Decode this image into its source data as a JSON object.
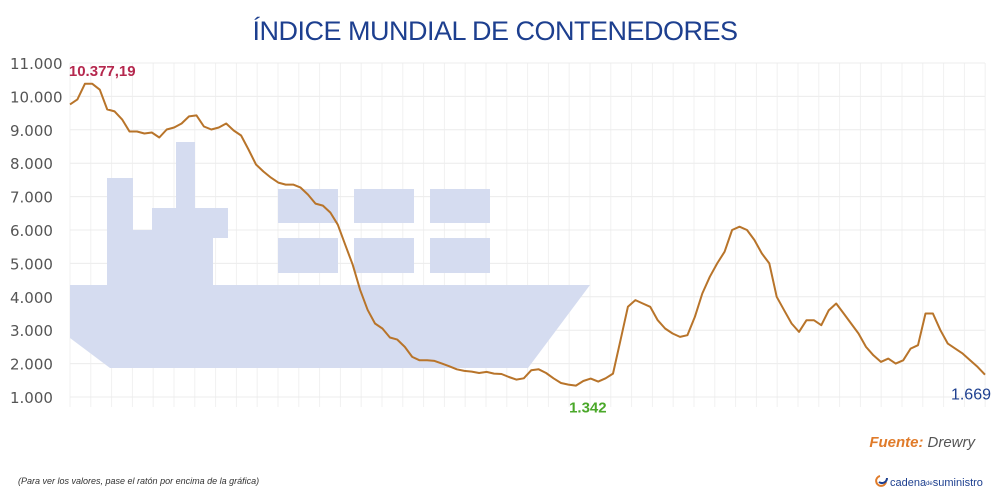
{
  "chart_data": {
    "type": "line",
    "title": "ÍNDICE MUNDIAL DE CONTENEDORES",
    "xlabel": "",
    "ylabel": "",
    "ylim": [
      1000,
      11000
    ],
    "yticks": [
      "1.000",
      "2.000",
      "3.000",
      "4.000",
      "5.000",
      "6.000",
      "7.000",
      "8.000",
      "9.000",
      "10.000",
      "11.000"
    ],
    "grid": true,
    "series": [
      {
        "values": [
          9760,
          9910,
          10377,
          10377,
          10200,
          9610,
          9550,
          9310,
          8950,
          8950,
          8890,
          8920,
          8770,
          9010,
          9070,
          9190,
          9400,
          9430,
          9100,
          9010,
          9070,
          9190,
          8980,
          8830,
          8410,
          7960,
          7750,
          7570,
          7420,
          7360,
          7360,
          7270,
          7060,
          6790,
          6730,
          6520,
          6160,
          5560,
          4960,
          4210,
          3610,
          3200,
          3050,
          2780,
          2720,
          2500,
          2200,
          2100,
          2100,
          2080,
          2000,
          1920,
          1830,
          1780,
          1760,
          1720,
          1750,
          1700,
          1690,
          1600,
          1520,
          1560,
          1800,
          1830,
          1720,
          1560,
          1420,
          1370,
          1342,
          1480,
          1550,
          1460,
          1560,
          1700,
          2700,
          3700,
          3900,
          3800,
          3700,
          3300,
          3050,
          2900,
          2800,
          2850,
          3400,
          4100,
          4600,
          5000,
          5350,
          6000,
          6100,
          6000,
          5700,
          5300,
          5000,
          4000,
          3600,
          3200,
          2950,
          3300,
          3300,
          3150,
          3600,
          3800,
          3500,
          3200,
          2900,
          2500,
          2250,
          2050,
          2150,
          2000,
          2100,
          2450,
          2550,
          3500,
          3500,
          3000,
          2600,
          2450,
          2300,
          2100,
          1900,
          1669
        ]
      }
    ],
    "annotations": {
      "max": {
        "text": "10.377,19",
        "index": 2
      },
      "min": {
        "text": "1.342",
        "index": 68
      },
      "last": {
        "text": "1.669",
        "index": 123
      }
    },
    "colors": {
      "line": "#b8742a",
      "title": "#1d3f8f",
      "max": "#b5284e",
      "min": "#4aa829",
      "last": "#1d3f8f",
      "ship": "#d5dcf0",
      "source_label": "#e07b2a"
    }
  },
  "source": {
    "label": "Fuente:",
    "value": "Drewry"
  },
  "footnote": "(Para ver los valores, pase el ratón por encima de la gráfica)",
  "brand": {
    "name_a": "cadena",
    "name_de": "de",
    "name_b": "suministro"
  }
}
